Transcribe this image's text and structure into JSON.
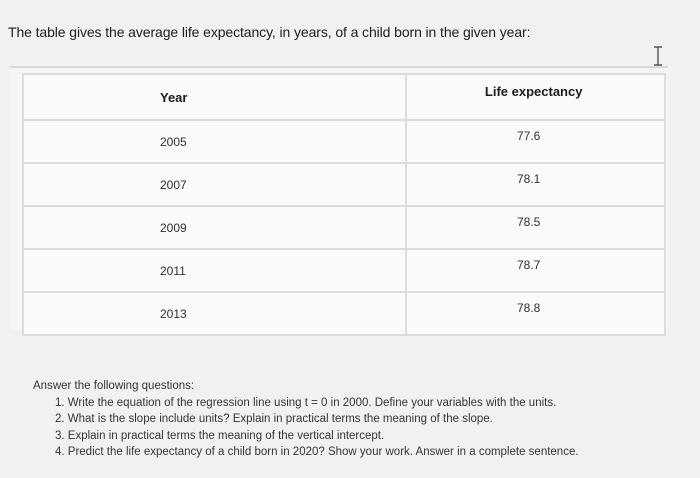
{
  "intro_text": "The table gives the average life expectancy, in years, of a child born in the given year:",
  "table": {
    "headers": [
      "Year",
      "Life expectancy"
    ],
    "rows": [
      {
        "year": "2005",
        "life": "77.6"
      },
      {
        "year": "2007",
        "life": "78.1"
      },
      {
        "year": "2009",
        "life": "78.5"
      },
      {
        "year": "2011",
        "life": "78.7"
      },
      {
        "year": "2013",
        "life": "78.8"
      }
    ]
  },
  "questions": {
    "intro": "Answer the following questions:",
    "items": [
      "1. Write the equation of the regression line using t = 0 in 2000. Define your variables with the units.",
      "2. What is the slope include units? Explain in practical terms the meaning of the slope.",
      "3. Explain in practical terms the meaning of the vertical intercept.",
      "4. Predict the life expectancy of a child born in 2020? Show your work. Answer in a complete sentence."
    ]
  },
  "icons": {
    "cursor": "text-cursor-icon"
  }
}
